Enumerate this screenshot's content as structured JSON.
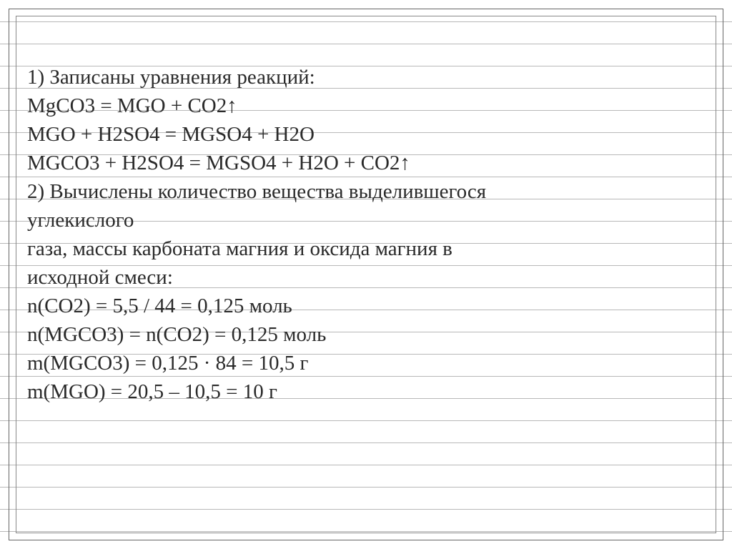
{
  "colors": {
    "text": "#2a2a2a",
    "rule_line": "#b8b8b8",
    "border_outer": "#666666",
    "border_inner": "#888888",
    "background": "#ffffff"
  },
  "typography": {
    "font_family": "Times New Roman",
    "font_size_pt": 22,
    "line_height": 1.38
  },
  "lines": [
    "1) Записаны уравнения реакций:",
    "MgCO3 = MGO + CO2↑",
    "MGO + H2SO4 = MGSO4 + H2O",
    "MGCO3 + H2SO4 = MGSO4 + H2O + CO2↑",
    "2) Вычислены количество вещества выделившегося",
    "углекислого",
    "газа, массы карбоната магния и оксида магния в",
    "исходной смеси:",
    "n(CO2) = 5,5 / 44 = 0,125 моль",
    "n(MGCO3) = n(CO2) = 0,125 моль",
    "m(MGCO3) = 0,125 · 84 = 10,5 г",
    "m(MGO) = 20,5 – 10,5 = 10 г"
  ]
}
